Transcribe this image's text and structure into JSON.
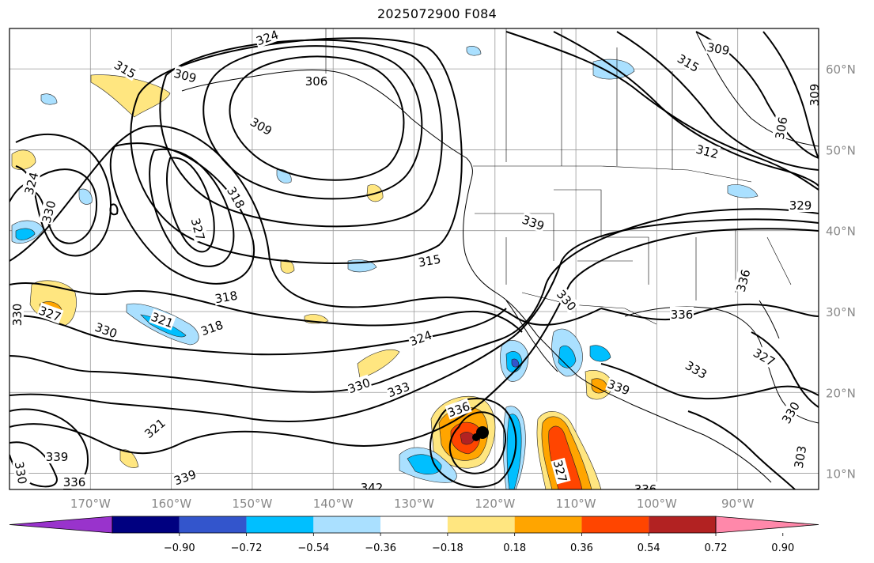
{
  "title": "2025072900 F084",
  "map": {
    "projection": "PlateCarree",
    "extent": {
      "lon_min": -180,
      "lon_max": -80,
      "lat_min": 8,
      "lat_max": 65
    },
    "longitude_labels": [
      "170°W",
      "160°W",
      "150°W",
      "140°W",
      "130°W",
      "120°W",
      "110°W",
      "100°W",
      "90°W"
    ],
    "latitude_labels": [
      "60°N",
      "50°N",
      "40°N",
      "30°N",
      "20°N",
      "10°N"
    ],
    "contour_labels": [
      "312",
      "309",
      "315",
      "309",
      "306",
      "309",
      "315",
      "312",
      "309",
      "306",
      "324",
      "330",
      "318",
      "327",
      "315",
      "321",
      "318",
      "330",
      "327",
      "330",
      "324",
      "318",
      "321",
      "330",
      "333",
      "336",
      "339",
      "324",
      "339",
      "336",
      "330",
      "342",
      "336",
      "333",
      "327",
      "336",
      "339",
      "330",
      "327",
      "339",
      "336",
      "330",
      "329",
      "309",
      "303"
    ],
    "storm_marker": "tropical-cyclone-center"
  },
  "colorbar": {
    "tick_labels": [
      "−0.90",
      "−0.72",
      "−0.54",
      "−0.36",
      "−0.18",
      "0.18",
      "0.36",
      "0.54",
      "0.72",
      "0.90"
    ],
    "colors": [
      "#9933cc",
      "#000080",
      "#3355cc",
      "#00bfff",
      "#aae0ff",
      "#ffffff",
      "#ffe680",
      "#ffa500",
      "#ff4500",
      "#b22222",
      "#ff88aa"
    ],
    "extend": "both"
  }
}
